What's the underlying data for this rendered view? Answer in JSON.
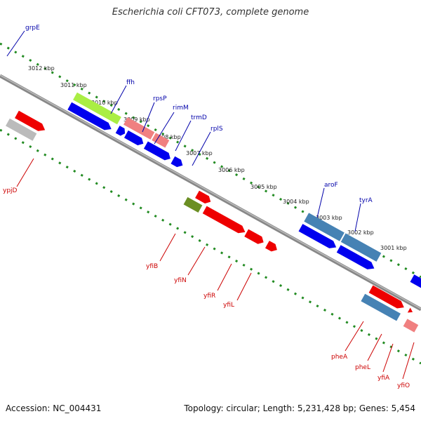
{
  "title": "Escherichia coli CFT073, complete genome",
  "accession_text": "Accession: NC_004431",
  "topology_text": "Topology: circular; Length: 5,231,428 bp; Genes: 5,454",
  "colors": {
    "upper_label": "#0000aa",
    "lower_label": "#cc0000",
    "tick": "#228b22",
    "backbone": "#888888",
    "strand_blue": "#0000ee",
    "strand_red": "#ee0000",
    "pink": "#f08080",
    "lime": "#aaee44",
    "olive": "#6b8e23",
    "steel": "#4682b4",
    "navy": "#333388",
    "grey": "#bbbbbb",
    "khaki": "#cccc88"
  },
  "scale_labels": [
    "3012 kbp",
    "3011 kbp",
    "3010 kbp",
    "3009 kbp",
    "3008 kbp",
    "3007 kbp",
    "3006 kbp",
    "3005 kbp",
    "3004 kbp",
    "3003 kbp",
    "3002 kbp",
    "3001 kbp"
  ],
  "gene_labels_top": [
    "grpE",
    "ffh",
    "rpsP",
    "rimM",
    "trmD",
    "rplS",
    "aroF",
    "tyrA"
  ],
  "gene_labels_bottom": [
    "ypjD",
    "yfiB",
    "yfiN",
    "yfiR",
    "yfiL",
    "pheA",
    "pheL",
    "yfiA",
    "yfiO"
  ]
}
